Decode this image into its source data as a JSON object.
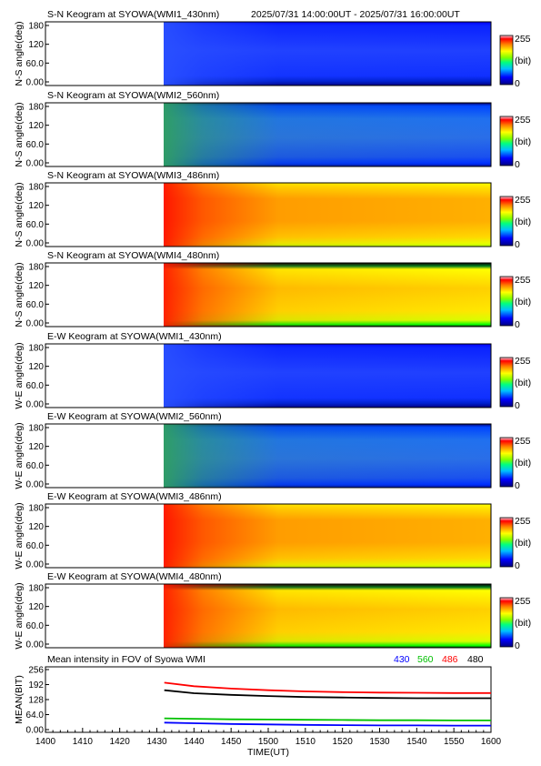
{
  "time_range": "2025/07/31 14:00:00UT - 2025/07/31 16:00:00UT",
  "colorbar": {
    "max": "255",
    "unit": "(bit)",
    "min": "0"
  },
  "panels": [
    {
      "title": "S-N Keogram at SYOWA(WMI1_430nm)",
      "ylabel": "N-S angle(deg)",
      "scheme": "blue-low"
    },
    {
      "title": "S-N Keogram at SYOWA(WMI2_560nm)",
      "ylabel": "N-S angle(deg)",
      "scheme": "blue-mid"
    },
    {
      "title": "S-N Keogram at SYOWA(WMI3_486nm)",
      "ylabel": "N-S angle(deg)",
      "scheme": "hot"
    },
    {
      "title": "S-N Keogram at SYOWA(WMI4_480nm)",
      "ylabel": "N-S angle(deg)",
      "scheme": "hot-band"
    },
    {
      "title": "E-W Keogram at SYOWA(WMI1_430nm)",
      "ylabel": "W-E angle(deg)",
      "scheme": "blue-low"
    },
    {
      "title": "E-W Keogram at SYOWA(WMI2_560nm)",
      "ylabel": "W-E angle(deg)",
      "scheme": "blue-mid"
    },
    {
      "title": "E-W Keogram at SYOWA(WMI3_486nm)",
      "ylabel": "W-E angle(deg)",
      "scheme": "hot"
    },
    {
      "title": "E-W Keogram at SYOWA(WMI4_480nm)",
      "ylabel": "W-E angle(deg)",
      "scheme": "hot-band"
    }
  ],
  "keogram_yticks": [
    "0.00",
    "60.0",
    "120",
    "180"
  ],
  "chart_data": {
    "type": "line",
    "title": "Mean intensity in FOV of Syowa WMI",
    "xlabel": "TIME(UT)",
    "ylabel": "MEAN(BIT)",
    "x_ticks": [
      "1400",
      "1410",
      "1420",
      "1430",
      "1440",
      "1450",
      "1500",
      "1510",
      "1520",
      "1530",
      "1540",
      "1550",
      "1600"
    ],
    "y_ticks": [
      "0.00",
      "64.0",
      "128",
      "192",
      "256"
    ],
    "xlim": [
      0,
      120
    ],
    "ylim": [
      0,
      256
    ],
    "x_minutes": [
      32,
      40,
      50,
      60,
      70,
      80,
      90,
      100,
      110,
      120
    ],
    "series": [
      {
        "name": "430",
        "color": "#0000ff",
        "values": [
          30,
          27,
          24,
          22,
          20,
          19,
          18,
          18,
          17,
          17
        ]
      },
      {
        "name": "560",
        "color": "#00c000",
        "values": [
          48,
          46,
          44,
          43,
          42,
          41,
          40,
          40,
          39,
          39
        ]
      },
      {
        "name": "486",
        "color": "#ff0000",
        "values": [
          200,
          185,
          175,
          168,
          163,
          160,
          158,
          157,
          156,
          156
        ]
      },
      {
        "name": "480",
        "color": "#000000",
        "values": [
          168,
          155,
          148,
          143,
          139,
          137,
          135,
          134,
          134,
          134
        ]
      }
    ]
  }
}
